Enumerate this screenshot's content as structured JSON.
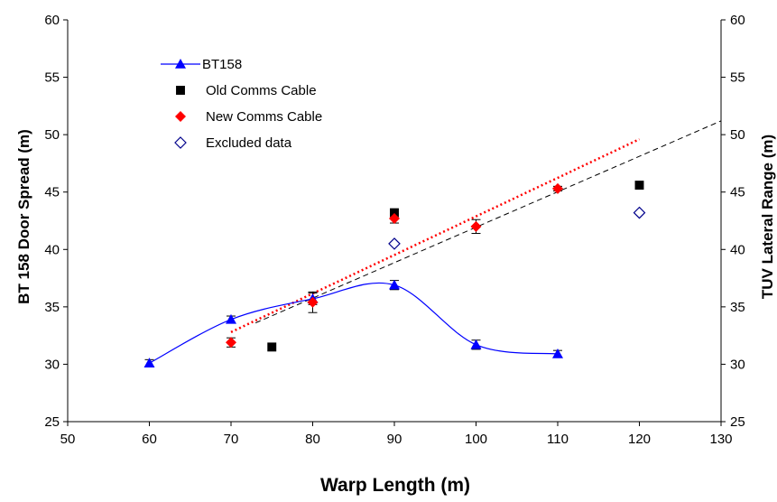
{
  "chart_data": {
    "type": "scatter",
    "xlabel": "Warp Length (m)",
    "ylabel": "BT 158 Door Spread (m)",
    "y2label": "TUV Lateral Range (m)",
    "xlim": [
      50,
      130
    ],
    "ylim": [
      25,
      60
    ],
    "y2lim": [
      25,
      60
    ],
    "xticks": [
      50,
      60,
      70,
      80,
      90,
      100,
      110,
      120,
      130
    ],
    "yticks": [
      25,
      30,
      35,
      40,
      45,
      50,
      55,
      60
    ],
    "grid": false,
    "legend_position": "top-left",
    "series": [
      {
        "name": "BT158",
        "marker": "triangle",
        "color": "#0000ff",
        "line": "smooth",
        "x": [
          60,
          70,
          80,
          90,
          100,
          110
        ],
        "y": [
          30.1,
          33.9,
          35.7,
          36.9,
          31.7,
          30.9
        ],
        "err": [
          0.3,
          0.3,
          0.5,
          0.4,
          0.4,
          0.3
        ]
      },
      {
        "name": "Old Comms Cable",
        "marker": "square",
        "color": "#000000",
        "x": [
          75,
          90,
          120
        ],
        "y": [
          31.5,
          43.2,
          45.6
        ]
      },
      {
        "name": "New Comms Cable",
        "marker": "diamond",
        "color": "#ff0000",
        "x": [
          70,
          80,
          90,
          100,
          110
        ],
        "y": [
          31.9,
          35.4,
          42.7,
          42.0,
          45.3
        ],
        "err": [
          0.4,
          0.9,
          0.4,
          0.6,
          0.2
        ]
      },
      {
        "name": "Excluded data",
        "marker": "open-diamond",
        "color": "#00008b",
        "x": [
          90,
          120
        ],
        "y": [
          40.5,
          43.2
        ]
      }
    ],
    "trendlines": [
      {
        "style": "dashed",
        "color": "#000000",
        "x": [
          73,
          130
        ],
        "y": [
          33.6,
          51.2
        ]
      },
      {
        "style": "dotted",
        "color": "#ff0000",
        "x": [
          70,
          120
        ],
        "y": [
          32.8,
          49.6
        ]
      }
    ]
  }
}
